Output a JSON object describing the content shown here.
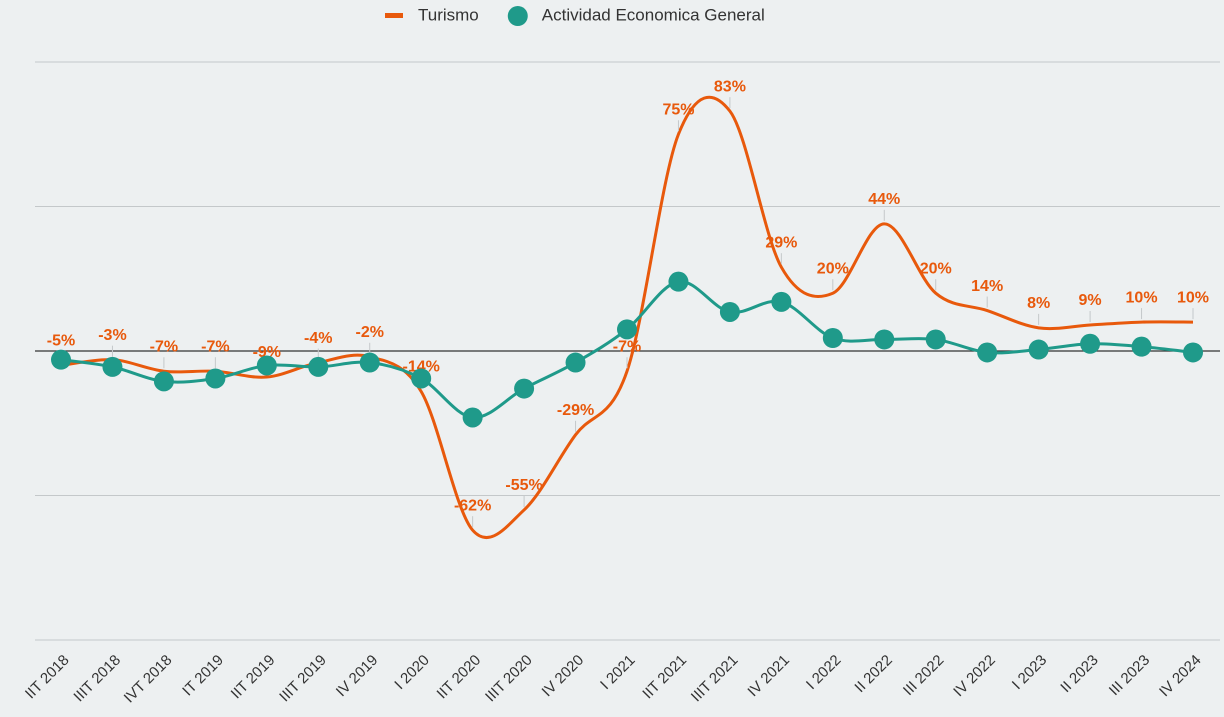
{
  "chart_data": {
    "type": "line",
    "categories": [
      "IIT 2018",
      "IIIT 2018",
      "IVT 2018",
      "IT 2019",
      "IIT 2019",
      "IIIT 2019",
      "IV 2019",
      "I 2020",
      "IIT 2020",
      "IIIT 2020",
      "IV 2020",
      "I 2021",
      "IIT 2021",
      "IIIT 2021",
      "IV 2021",
      "I 2022",
      "II 2022",
      "III 2022",
      "IV 2022",
      "I 2023",
      "II 2023",
      "III 2023",
      "IV 2024"
    ],
    "series": [
      {
        "name": "Turismo",
        "color": "#e8590c",
        "values": [
          -5,
          -3,
          -7,
          -7,
          -9,
          -4,
          -2,
          -14,
          -62,
          -55,
          -29,
          -7,
          75,
          83,
          29,
          20,
          44,
          20,
          14,
          8,
          9,
          10,
          10
        ],
        "value_labels": [
          "-5%",
          "-3%",
          "-7%",
          "-7%",
          "-9%",
          "-4%",
          "-2%",
          "-14%",
          "-62%",
          "-55%",
          "-29%",
          "-7%",
          "75%",
          "83%",
          "29%",
          "20%",
          "44%",
          "20%",
          "14%",
          "8%",
          "9%",
          "10%",
          "10%"
        ]
      },
      {
        "name": "Actividad Economica General",
        "color": "#1f9a8a",
        "values": [
          -3,
          -5.5,
          -10.5,
          -9.5,
          -5,
          -5.5,
          -4,
          -9.5,
          -23,
          -13,
          -4,
          7.5,
          24,
          13.5,
          17,
          4.5,
          4,
          4,
          -0.5,
          0.5,
          2.5,
          1.5,
          -0.5
        ]
      }
    ],
    "ylim": [
      -100,
      100
    ],
    "yticks": [
      -100,
      -50,
      0,
      50,
      100
    ],
    "grid": true
  }
}
